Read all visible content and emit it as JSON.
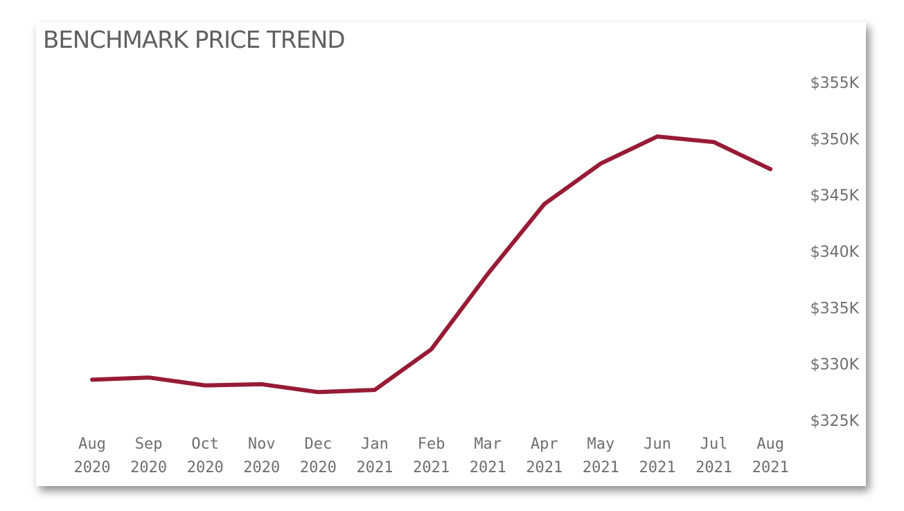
{
  "chart_data": {
    "type": "line",
    "title": "BENCHMARK PRICE TREND",
    "xlabel": "",
    "ylabel": "",
    "categories": [
      [
        "Aug",
        "2020"
      ],
      [
        "Sep",
        "2020"
      ],
      [
        "Oct",
        "2020"
      ],
      [
        "Nov",
        "2020"
      ],
      [
        "Dec",
        "2020"
      ],
      [
        "Jan",
        "2021"
      ],
      [
        "Feb",
        "2021"
      ],
      [
        "Mar",
        "2021"
      ],
      [
        "Apr",
        "2021"
      ],
      [
        "May",
        "2021"
      ],
      [
        "Jun",
        "2021"
      ],
      [
        "Jul",
        "2021"
      ],
      [
        "Aug",
        "2021"
      ]
    ],
    "series": [
      {
        "values": [
          328600,
          328800,
          328100,
          328200,
          327500,
          327700,
          331300,
          338000,
          344200,
          347800,
          350200,
          349700,
          347300
        ]
      }
    ],
    "y_ticks": [
      {
        "value": 325000,
        "label": "$325K"
      },
      {
        "value": 330000,
        "label": "$330K"
      },
      {
        "value": 335000,
        "label": "$335K"
      },
      {
        "value": 340000,
        "label": "$340K"
      },
      {
        "value": 345000,
        "label": "$345K"
      },
      {
        "value": 350000,
        "label": "$350K"
      },
      {
        "value": 355000,
        "label": "$355K"
      }
    ],
    "ylim": [
      325000,
      355000
    ],
    "y_axis_side": "right",
    "grid": false,
    "legend": "none",
    "line_color": "#971b35"
  }
}
